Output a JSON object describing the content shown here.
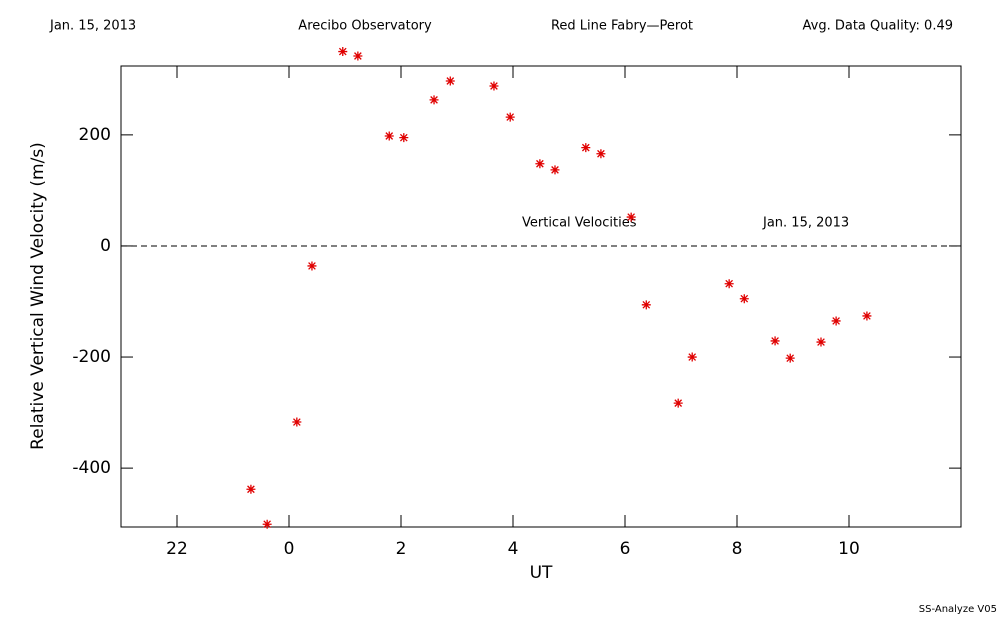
{
  "chart_data": {
    "type": "scatter",
    "header": [
      "Jan. 15, 2013",
      "Arecibo Observatory",
      "Red Line Fabry—Perot",
      "Avg. Data Quality: 0.49"
    ],
    "annotations": [
      "Vertical Velocities",
      "Jan. 15, 2013"
    ],
    "footer": "SS-Analyze V05",
    "xlabel": "UT",
    "ylabel": "Relative Vertical Wind Velocity (m/s)",
    "x": [
      -0.68,
      -0.39,
      0.14,
      0.41,
      0.96,
      1.23,
      1.79,
      2.05,
      2.59,
      2.88,
      3.66,
      3.95,
      4.48,
      4.75,
      5.3,
      5.57,
      6.11,
      6.38,
      6.95,
      7.2,
      7.86,
      8.13,
      8.68,
      8.95,
      9.5,
      9.77,
      10.32
    ],
    "y": [
      -438,
      -501,
      -317,
      -36,
      350,
      342,
      198,
      195,
      263,
      297,
      288,
      232,
      148,
      137,
      177,
      166,
      52,
      -106,
      -283,
      -200,
      -68,
      -95,
      -171,
      -202,
      -173,
      -135,
      -126
    ],
    "color": "#e00000",
    "xlim": [
      -3,
      12
    ],
    "xticks": [
      {
        "value": -2,
        "label": "22"
      },
      0,
      2,
      4,
      6,
      8,
      10
    ],
    "ylim": [
      -506,
      324
    ],
    "yticks": [
      -400,
      -200,
      0,
      200
    ],
    "hline": 0
  }
}
